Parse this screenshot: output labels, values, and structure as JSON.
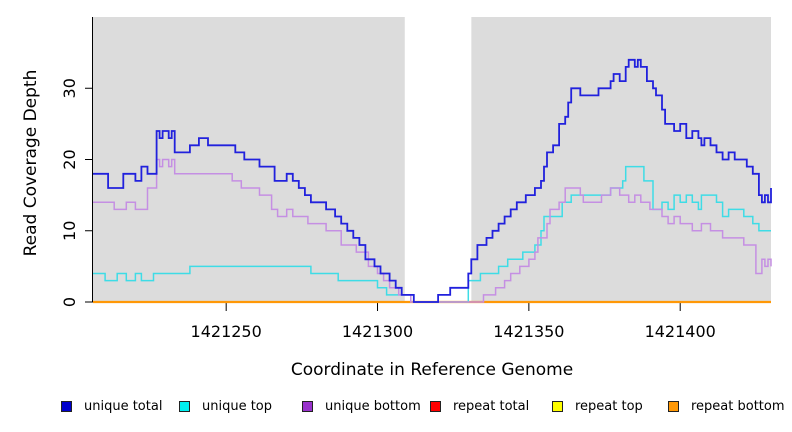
{
  "figure": {
    "background_color": "#ffffff",
    "plot_background_color": "#dcdcdc",
    "axis_color": "#000000"
  },
  "chart_data": {
    "type": "line",
    "subtype": "step-after",
    "title": "",
    "xlabel": "Coordinate in Reference Genome",
    "ylabel": "Read Coverage Depth",
    "xlim": [
      1421206,
      1421430
    ],
    "ylim": [
      0,
      40
    ],
    "x_ticks": [
      "1421250",
      "1421300",
      "1421350",
      "1421400"
    ],
    "x_tick_values": [
      1421250,
      1421300,
      1421350,
      1421400
    ],
    "y_ticks": [
      "0",
      "10",
      "20",
      "30"
    ],
    "y_tick_values": [
      0,
      10,
      20,
      30
    ],
    "grid": false,
    "legend_position": "bottom",
    "coverage_regions": [
      [
        1421206,
        1421309
      ],
      [
        1421331,
        1421430
      ]
    ],
    "gap_region": [
      1421309,
      1421331
    ],
    "series": [
      {
        "name": "unique total",
        "color": "#2121dd",
        "legend_color": "#0000cc",
        "width": 1.8,
        "points": [
          [
            1421206,
            18
          ],
          [
            1421211,
            16
          ],
          [
            1421216,
            18
          ],
          [
            1421220,
            17
          ],
          [
            1421222,
            19
          ],
          [
            1421224,
            18
          ],
          [
            1421227,
            24
          ],
          [
            1421228,
            23
          ],
          [
            1421229,
            24
          ],
          [
            1421231,
            23
          ],
          [
            1421232,
            24
          ],
          [
            1421233,
            21
          ],
          [
            1421238,
            22
          ],
          [
            1421241,
            23
          ],
          [
            1421244,
            22
          ],
          [
            1421253,
            21
          ],
          [
            1421256,
            20
          ],
          [
            1421261,
            19
          ],
          [
            1421266,
            17
          ],
          [
            1421270,
            18
          ],
          [
            1421272,
            17
          ],
          [
            1421274,
            16
          ],
          [
            1421276,
            15
          ],
          [
            1421278,
            14
          ],
          [
            1421283,
            13
          ],
          [
            1421286,
            12
          ],
          [
            1421288,
            11
          ],
          [
            1421290,
            10
          ],
          [
            1421292,
            9
          ],
          [
            1421294,
            8
          ],
          [
            1421296,
            6
          ],
          [
            1421299,
            5
          ],
          [
            1421301,
            4
          ],
          [
            1421304,
            3
          ],
          [
            1421306,
            2
          ],
          [
            1421308,
            1
          ],
          [
            1421312,
            0
          ],
          [
            1421320,
            1
          ],
          [
            1421324,
            2
          ],
          [
            1421330,
            4
          ],
          [
            1421331,
            6
          ],
          [
            1421333,
            8
          ],
          [
            1421336,
            9
          ],
          [
            1421338,
            10
          ],
          [
            1421340,
            11
          ],
          [
            1421342,
            12
          ],
          [
            1421344,
            13
          ],
          [
            1421346,
            14
          ],
          [
            1421349,
            15
          ],
          [
            1421352,
            16
          ],
          [
            1421354,
            17
          ],
          [
            1421355,
            19
          ],
          [
            1421356,
            21
          ],
          [
            1421358,
            22
          ],
          [
            1421360,
            25
          ],
          [
            1421362,
            26
          ],
          [
            1421363,
            28
          ],
          [
            1421364,
            30
          ],
          [
            1421367,
            29
          ],
          [
            1421373,
            30
          ],
          [
            1421377,
            31
          ],
          [
            1421378,
            32
          ],
          [
            1421380,
            31
          ],
          [
            1421382,
            33
          ],
          [
            1421383,
            34
          ],
          [
            1421385,
            33
          ],
          [
            1421386,
            34
          ],
          [
            1421387,
            33
          ],
          [
            1421389,
            31
          ],
          [
            1421391,
            30
          ],
          [
            1421392,
            29
          ],
          [
            1421394,
            27
          ],
          [
            1421395,
            25
          ],
          [
            1421398,
            24
          ],
          [
            1421400,
            25
          ],
          [
            1421402,
            23
          ],
          [
            1421404,
            24
          ],
          [
            1421406,
            23
          ],
          [
            1421407,
            22
          ],
          [
            1421408,
            23
          ],
          [
            1421410,
            22
          ],
          [
            1421412,
            21
          ],
          [
            1421414,
            20
          ],
          [
            1421416,
            21
          ],
          [
            1421418,
            20
          ],
          [
            1421422,
            19
          ],
          [
            1421424,
            18
          ],
          [
            1421426,
            15
          ],
          [
            1421427,
            14
          ],
          [
            1421428,
            15
          ],
          [
            1421429,
            14
          ],
          [
            1421430,
            16
          ]
        ]
      },
      {
        "name": "unique top",
        "color": "#3edce6",
        "legend_color": "#00f0f0",
        "width": 1.5,
        "points": [
          [
            1421206,
            4
          ],
          [
            1421210,
            3
          ],
          [
            1421214,
            4
          ],
          [
            1421217,
            3
          ],
          [
            1421220,
            4
          ],
          [
            1421222,
            3
          ],
          [
            1421226,
            4
          ],
          [
            1421238,
            5
          ],
          [
            1421278,
            4
          ],
          [
            1421287,
            3
          ],
          [
            1421300,
            2
          ],
          [
            1421303,
            1
          ],
          [
            1421312,
            0
          ],
          [
            1421330,
            3
          ],
          [
            1421334,
            4
          ],
          [
            1421340,
            5
          ],
          [
            1421343,
            6
          ],
          [
            1421348,
            7
          ],
          [
            1421352,
            8
          ],
          [
            1421354,
            10
          ],
          [
            1421355,
            12
          ],
          [
            1421361,
            14
          ],
          [
            1421364,
            15
          ],
          [
            1421377,
            16
          ],
          [
            1421381,
            17
          ],
          [
            1421382,
            19
          ],
          [
            1421388,
            17
          ],
          [
            1421391,
            13
          ],
          [
            1421394,
            14
          ],
          [
            1421396,
            13
          ],
          [
            1421398,
            15
          ],
          [
            1421400,
            14
          ],
          [
            1421402,
            15
          ],
          [
            1421404,
            14
          ],
          [
            1421406,
            13
          ],
          [
            1421407,
            15
          ],
          [
            1421412,
            14
          ],
          [
            1421414,
            12
          ],
          [
            1421416,
            13
          ],
          [
            1421421,
            12
          ],
          [
            1421424,
            11
          ],
          [
            1421426,
            10
          ]
        ]
      },
      {
        "name": "unique bottom",
        "color": "#c58fe3",
        "legend_color": "#9932cc",
        "width": 1.5,
        "points": [
          [
            1421206,
            14
          ],
          [
            1421213,
            13
          ],
          [
            1421217,
            14
          ],
          [
            1421220,
            13
          ],
          [
            1421224,
            16
          ],
          [
            1421227,
            20
          ],
          [
            1421228,
            19
          ],
          [
            1421229,
            20
          ],
          [
            1421231,
            19
          ],
          [
            1421232,
            20
          ],
          [
            1421233,
            18
          ],
          [
            1421252,
            17
          ],
          [
            1421255,
            16
          ],
          [
            1421261,
            15
          ],
          [
            1421265,
            13
          ],
          [
            1421267,
            12
          ],
          [
            1421270,
            13
          ],
          [
            1421272,
            12
          ],
          [
            1421277,
            11
          ],
          [
            1421283,
            10
          ],
          [
            1421288,
            8
          ],
          [
            1421293,
            7
          ],
          [
            1421297,
            5
          ],
          [
            1421300,
            4
          ],
          [
            1421302,
            3
          ],
          [
            1421304,
            2
          ],
          [
            1421307,
            1
          ],
          [
            1421311,
            0
          ],
          [
            1421335,
            1
          ],
          [
            1421339,
            2
          ],
          [
            1421342,
            3
          ],
          [
            1421344,
            4
          ],
          [
            1421347,
            5
          ],
          [
            1421350,
            6
          ],
          [
            1421352,
            7
          ],
          [
            1421353,
            9
          ],
          [
            1421356,
            11
          ],
          [
            1421357,
            13
          ],
          [
            1421360,
            14
          ],
          [
            1421362,
            16
          ],
          [
            1421367,
            15
          ],
          [
            1421368,
            14
          ],
          [
            1421374,
            15
          ],
          [
            1421377,
            16
          ],
          [
            1421380,
            15
          ],
          [
            1421383,
            14
          ],
          [
            1421385,
            15
          ],
          [
            1421387,
            14
          ],
          [
            1421390,
            13
          ],
          [
            1421394,
            12
          ],
          [
            1421396,
            11
          ],
          [
            1421398,
            12
          ],
          [
            1421400,
            11
          ],
          [
            1421404,
            10
          ],
          [
            1421407,
            11
          ],
          [
            1421410,
            10
          ],
          [
            1421414,
            9
          ],
          [
            1421421,
            8
          ],
          [
            1421425,
            4
          ],
          [
            1421427,
            6
          ],
          [
            1421428,
            5
          ],
          [
            1421429,
            6
          ],
          [
            1421430,
            5
          ]
        ]
      },
      {
        "name": "repeat total",
        "color": "#ee1111",
        "legend_color": "#ff0000",
        "width": 1.5,
        "points": [
          [
            1421206,
            0
          ],
          [
            1421430,
            0
          ]
        ]
      },
      {
        "name": "repeat top",
        "color": "#f2e50e",
        "legend_color": "#ffff00",
        "width": 1.5,
        "points": [
          [
            1421206,
            0
          ],
          [
            1421430,
            0
          ]
        ]
      },
      {
        "name": "repeat bottom",
        "color": "#ff9806",
        "legend_color": "#ff9806",
        "width": 2.2,
        "points": [
          [
            1421206,
            0
          ],
          [
            1421430,
            0
          ]
        ]
      }
    ]
  }
}
